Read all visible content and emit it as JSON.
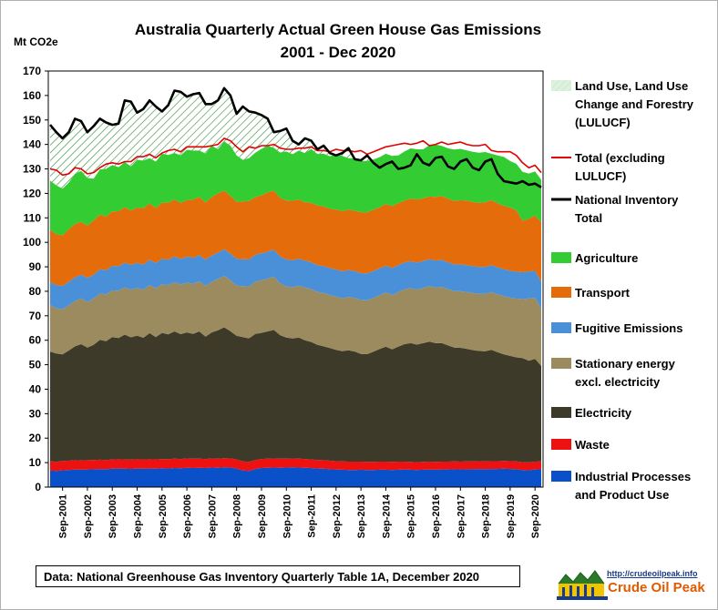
{
  "title_line1": "Australia  Quarterly Actual Green House Gas Emissions",
  "title_line2": "2001 - Dec 2020",
  "source": "Data: National Greenhouse Gas Inventory Quarterly Table 1A, December 2020",
  "logo": {
    "url": "http://crudeoilpeak.info",
    "name": "Crude Oil Peak"
  },
  "legend": [
    {
      "label": "Land Use, Land Use Change and Forestry (LULUCF)",
      "lines": [
        "Land Use, Land Use",
        "Change and Forestry",
        "(LULUCF)"
      ],
      "kind": "hatch",
      "color": "#2e8b2e"
    },
    {
      "label": "Total (excluding LULUCF)",
      "lines": [
        "Total (excluding",
        "LULUCF)"
      ],
      "kind": "line",
      "color": "#e00000"
    },
    {
      "label": "National Inventory Total",
      "lines": [
        "National Inventory",
        "Total"
      ],
      "kind": "line",
      "color": "#000000"
    },
    {
      "label": "Agriculture",
      "lines": [
        "Agriculture"
      ],
      "kind": "area",
      "color": "#33cc33"
    },
    {
      "label": "Transport",
      "lines": [
        "Transport"
      ],
      "kind": "area",
      "color": "#e46c0a"
    },
    {
      "label": "Fugitive Emissions",
      "lines": [
        "Fugitive Emissions"
      ],
      "kind": "area",
      "color": "#4a90d9"
    },
    {
      "label": "Stationary energy excl. electricity",
      "lines": [
        "Stationary energy",
        "excl. electricity"
      ],
      "kind": "area",
      "color": "#9c8b5e"
    },
    {
      "label": "Electricity",
      "lines": [
        "Electricity"
      ],
      "kind": "area",
      "color": "#3d3a2a"
    },
    {
      "label": "Waste",
      "lines": [
        "Waste"
      ],
      "kind": "area",
      "color": "#ee1111"
    },
    {
      "label": "Industrial Processes and Product Use",
      "lines": [
        "Industrial Processes",
        "and Product Use"
      ],
      "kind": "area",
      "color": "#0a50c8"
    }
  ],
  "chart_data": {
    "type": "area",
    "title": "Australia  Quarterly Actual Green House Gas Emissions 2001 - Dec 2020",
    "ylabel": "Mt CO2e",
    "ylim": [
      0,
      170
    ],
    "yticks": [
      0,
      10,
      20,
      30,
      40,
      50,
      60,
      70,
      80,
      90,
      100,
      110,
      120,
      130,
      140,
      150,
      160,
      170
    ],
    "x_ticks": [
      "Sep-2001",
      "Sep-2002",
      "Sep-2003",
      "Sep-2004",
      "Sep-2005",
      "Sep-2006",
      "Sep-2007",
      "Sep-2008",
      "Sep-2009",
      "Sep-2010",
      "Sep-2011",
      "Sep-2012",
      "Sep-2013",
      "Sep-2014",
      "Sep-2015",
      "Sep-2016",
      "Sep-2017",
      "Sep-2018",
      "Sep-2019",
      "Sep-2020"
    ],
    "x_start": "Mar-2001",
    "x_end": "Dec-2020",
    "x_step": "quarter",
    "stack_order": [
      "Industrial Processes and Product Use",
      "Waste",
      "Electricity",
      "Stationary energy excl. electricity",
      "Fugitive Emissions",
      "Transport",
      "Agriculture"
    ],
    "series": [
      {
        "name": "Industrial Processes and Product Use",
        "color": "#0a50c8",
        "values": [
          6.8,
          6.6,
          6.9,
          7.0,
          7.2,
          7.1,
          7.2,
          7.3,
          7.4,
          7.3,
          7.5,
          7.6,
          7.5,
          7.4,
          7.6,
          7.5,
          7.6,
          7.5,
          7.7,
          7.6,
          7.8,
          7.7,
          7.9,
          7.8,
          7.9,
          7.8,
          8.0,
          7.9,
          8.1,
          8.0,
          7.6,
          6.8,
          6.6,
          7.4,
          7.8,
          7.9,
          8.0,
          7.9,
          8.0,
          8.1,
          8.0,
          7.9,
          7.8,
          7.6,
          7.5,
          7.3,
          7.2,
          7.1,
          7.0,
          7.0,
          7.1,
          7.0,
          7.0,
          7.1,
          7.1,
          7.0,
          7.1,
          7.2,
          7.1,
          7.0,
          7.1,
          7.2,
          7.1,
          7.2,
          7.2,
          7.3,
          7.2,
          7.3,
          7.3,
          7.4,
          7.3,
          7.4,
          7.4,
          7.5,
          7.4,
          7.3,
          7.0,
          6.9,
          7.2,
          7.3
        ]
      },
      {
        "name": "Waste",
        "color": "#ee1111",
        "values": [
          3.8,
          3.7,
          3.8,
          3.8,
          3.8,
          3.8,
          3.8,
          3.8,
          3.8,
          3.8,
          3.8,
          3.8,
          3.8,
          3.8,
          3.8,
          3.8,
          3.8,
          3.8,
          3.8,
          3.8,
          3.8,
          3.8,
          3.8,
          3.8,
          3.7,
          3.7,
          3.7,
          3.7,
          3.7,
          3.7,
          3.7,
          3.7,
          3.7,
          3.7,
          3.7,
          3.7,
          3.7,
          3.7,
          3.6,
          3.6,
          3.6,
          3.6,
          3.5,
          3.5,
          3.5,
          3.5,
          3.4,
          3.4,
          3.4,
          3.4,
          3.3,
          3.3,
          3.3,
          3.3,
          3.3,
          3.3,
          3.3,
          3.2,
          3.2,
          3.2,
          3.2,
          3.2,
          3.2,
          3.2,
          3.2,
          3.2,
          3.2,
          3.2,
          3.2,
          3.2,
          3.2,
          3.2,
          3.2,
          3.2,
          3.2,
          3.2,
          3.2,
          3.2,
          3.2,
          3.2
        ]
      },
      {
        "name": "Electricity",
        "color": "#3d3a2a",
        "values": [
          44.8,
          44.3,
          43.5,
          45.0,
          46.5,
          47.5,
          46.0,
          47.0,
          49.0,
          48.5,
          50.0,
          49.5,
          51.0,
          50.0,
          50.5,
          49.7,
          51.5,
          50.0,
          51.5,
          51.0,
          52.0,
          51.0,
          51.5,
          51.0,
          52.0,
          50.0,
          51.5,
          52.5,
          53.5,
          52.0,
          50.5,
          50.8,
          50.5,
          51.5,
          51.5,
          52.0,
          52.5,
          50.5,
          49.5,
          49.0,
          49.5,
          48.5,
          48.0,
          47.0,
          46.5,
          46.0,
          45.5,
          45.0,
          45.5,
          45.0,
          44.0,
          44.0,
          45.0,
          46.0,
          47.0,
          46.0,
          47.0,
          48.0,
          48.5,
          48.0,
          48.5,
          49.0,
          48.5,
          48.5,
          47.5,
          46.5,
          46.5,
          46.0,
          45.5,
          45.0,
          45.0,
          45.5,
          44.5,
          43.5,
          43.0,
          42.5,
          42.5,
          41.5,
          42.0,
          39.0
        ]
      },
      {
        "name": "Stationary energy excl. electricity",
        "color": "#9c8b5e",
        "values": [
          19.0,
          18.5,
          18.5,
          18.5,
          18.5,
          18.7,
          18.7,
          18.9,
          18.9,
          19.1,
          19.1,
          19.3,
          19.3,
          19.5,
          19.5,
          19.7,
          19.7,
          19.9,
          19.9,
          20.1,
          20.1,
          20.3,
          20.3,
          20.5,
          20.5,
          20.7,
          20.7,
          20.9,
          21.0,
          20.8,
          20.5,
          20.8,
          21.2,
          21.4,
          21.5,
          21.6,
          21.8,
          21.2,
          20.9,
          21.0,
          21.2,
          21.5,
          21.6,
          21.6,
          21.8,
          21.7,
          21.8,
          21.7,
          21.8,
          21.9,
          22.0,
          22.0,
          22.0,
          22.0,
          22.1,
          22.2,
          22.3,
          22.4,
          22.5,
          22.5,
          22.6,
          22.7,
          22.8,
          22.9,
          23.0,
          23.0,
          23.1,
          23.2,
          23.3,
          23.4,
          23.5,
          23.6,
          23.7,
          23.8,
          23.8,
          24.0,
          24.1,
          25.5,
          25.0,
          23.5
        ]
      },
      {
        "name": "Fugitive Emissions",
        "color": "#4a90d9",
        "values": [
          9.5,
          9.4,
          9.5,
          9.6,
          9.7,
          9.7,
          9.8,
          9.8,
          9.9,
          9.9,
          10.0,
          10.0,
          10.1,
          10.1,
          10.2,
          10.2,
          10.3,
          10.3,
          10.4,
          10.4,
          10.5,
          10.5,
          10.6,
          10.6,
          10.7,
          10.7,
          10.8,
          10.8,
          10.9,
          10.9,
          11.0,
          11.0,
          11.0,
          11.0,
          11.0,
          11.0,
          11.0,
          11.0,
          11.0,
          11.0,
          11.0,
          11.0,
          11.0,
          11.0,
          11.0,
          11.0,
          11.0,
          11.0,
          11.0,
          11.0,
          11.0,
          11.0,
          11.0,
          11.0,
          11.0,
          11.0,
          11.0,
          11.0,
          11.0,
          11.0,
          11.0,
          11.0,
          11.0,
          11.0,
          11.0,
          11.0,
          11.0,
          11.0,
          11.0,
          11.0,
          11.0,
          11.0,
          11.0,
          11.0,
          11.0,
          11.0,
          11.0,
          11.0,
          11.0,
          11.0
        ]
      },
      {
        "name": "Transport",
        "color": "#e46c0a",
        "values": [
          21.3,
          20.8,
          20.7,
          21.5,
          21.8,
          21.6,
          21.3,
          22.2,
          22.3,
          21.9,
          22.2,
          22.5,
          22.6,
          22.2,
          22.6,
          23.0,
          23.0,
          22.5,
          22.9,
          23.3,
          23.3,
          22.8,
          23.2,
          23.8,
          23.7,
          23.4,
          23.8,
          24.2,
          24.0,
          23.6,
          23.2,
          23.6,
          23.9,
          23.6,
          23.7,
          24.2,
          24.1,
          23.9,
          24.1,
          24.3,
          24.2,
          23.9,
          24.2,
          24.4,
          24.4,
          24.2,
          24.5,
          24.6,
          24.7,
          24.6,
          24.9,
          25.0,
          25.0,
          24.9,
          25.2,
          25.3,
          25.3,
          25.3,
          25.6,
          25.8,
          25.6,
          25.6,
          25.9,
          26.1,
          26.0,
          25.9,
          26.2,
          26.4,
          26.2,
          26.1,
          26.4,
          26.5,
          26.2,
          25.9,
          25.8,
          25.1,
          21.0,
          21.5,
          22.6,
          24.1
        ]
      },
      {
        "name": "Agriculture",
        "color": "#33cc33",
        "values": [
          20.0,
          20.0,
          19.0,
          19.0,
          20.5,
          20.8,
          19.5,
          17.0,
          18.5,
          19.5,
          19.0,
          18.0,
          18.5,
          18.0,
          19.5,
          19.5,
          18.5,
          19.0,
          20.0,
          19.5,
          19.0,
          19.5,
          20.5,
          20.0,
          19.0,
          20.0,
          21.0,
          18.0,
          20.0,
          20.5,
          19.0,
          17.0,
          17.5,
          18.0,
          19.0,
          19.0,
          17.5,
          18.5,
          20.0,
          19.0,
          20.0,
          20.0,
          22.0,
          21.0,
          21.5,
          21.5,
          22.5,
          22.5,
          21.0,
          21.5,
          21.0,
          21.0,
          20.5,
          20.5,
          20.5,
          20.5,
          19.5,
          20.0,
          20.5,
          20.5,
          20.0,
          21.0,
          21.5,
          20.5,
          20.5,
          21.0,
          21.0,
          20.5,
          20.5,
          20.5,
          20.5,
          19.0,
          19.5,
          20.0,
          19.0,
          19.0,
          20.0,
          18.5,
          18.0,
          17.5
        ]
      },
      {
        "name": "Total (excluding LULUCF)",
        "color": "#e00000",
        "type": "line",
        "values": [
          130.0,
          129.5,
          127.5,
          128.0,
          130.5,
          130.0,
          128.0,
          128.5,
          130.5,
          132.0,
          132.5,
          132.0,
          133.0,
          133.0,
          135.0,
          135.0,
          136.0,
          134.5,
          136.5,
          137.5,
          138.0,
          137.0,
          139.0,
          139.0,
          139.0,
          139.0,
          139.5,
          140.0,
          142.5,
          141.5,
          139.0,
          137.0,
          139.0,
          138.5,
          139.5,
          139.5,
          140.0,
          138.5,
          138.0,
          138.0,
          138.5,
          138.5,
          139.0,
          137.5,
          137.5,
          137.0,
          138.0,
          137.5,
          137.5,
          137.0,
          137.5,
          136.0,
          137.0,
          138.0,
          139.0,
          139.5,
          140.0,
          140.5,
          140.0,
          140.5,
          141.5,
          139.5,
          140.0,
          141.0,
          140.0,
          140.5,
          141.0,
          140.0,
          139.5,
          139.5,
          140.0,
          137.5,
          137.0,
          137.0,
          137.0,
          135.5,
          132.5,
          130.5,
          131.5,
          128.5
        ]
      },
      {
        "name": "National Inventory Total",
        "color": "#000000",
        "type": "line",
        "values": [
          148.0,
          145.0,
          142.5,
          145.0,
          150.5,
          149.5,
          145.0,
          147.5,
          150.5,
          149.0,
          148.0,
          148.5,
          158.0,
          157.5,
          153.0,
          154.5,
          158.0,
          155.5,
          153.5,
          156.0,
          162.0,
          161.5,
          159.5,
          160.5,
          161.0,
          156.5,
          156.5,
          158.0,
          163.0,
          160.0,
          152.5,
          155.5,
          153.5,
          153.0,
          152.0,
          150.5,
          145.0,
          145.5,
          146.5,
          141.5,
          140.0,
          142.5,
          141.5,
          138.0,
          139.5,
          136.5,
          135.5,
          136.5,
          138.5,
          134.0,
          133.5,
          135.5,
          132.5,
          130.5,
          132.0,
          133.0,
          130.0,
          130.5,
          131.5,
          136.0,
          132.5,
          131.5,
          134.5,
          135.0,
          131.0,
          130.0,
          133.0,
          134.0,
          130.5,
          129.5,
          133.0,
          134.0,
          128.0,
          125.0,
          124.5,
          124.0,
          125.0,
          123.5,
          124.0,
          122.5
        ]
      }
    ],
    "legend_position": "right",
    "grid": false
  }
}
